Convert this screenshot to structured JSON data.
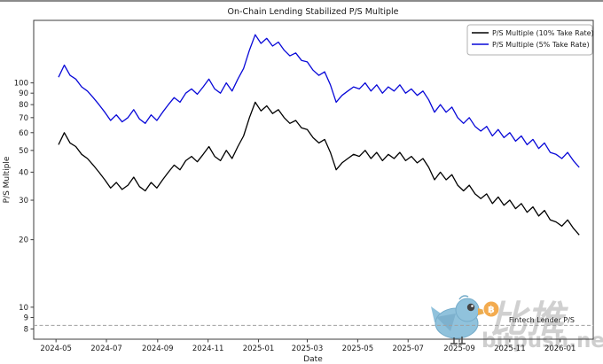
{
  "watermark": {
    "brand_cn": "比推",
    "brand_en": "bitpush.news",
    "bird_color": "#85bcd9",
    "bird_dark": "#66a3c4",
    "coin_color": "#f2a33c",
    "coin_symbol": "฿"
  },
  "chart_data": {
    "type": "line",
    "title": "On-Chain Lending Stabilized P/S Multiple",
    "xlabel": "Date",
    "ylabel": "P/S Multiple",
    "y_scale": "log",
    "ylim": [
      7.2,
      190
    ],
    "x_range": [
      "2024-04-04",
      "2026-02-10"
    ],
    "x_tick_labels": [
      "2024-05",
      "2024-07",
      "2024-09",
      "2024-11",
      "2025-01",
      "2025-03",
      "2025-05",
      "2025-07",
      "2025-09",
      "2025-11",
      "2026-01"
    ],
    "y_ticks": [
      8,
      9,
      10,
      20,
      30,
      40,
      50,
      60,
      70,
      80,
      90,
      100
    ],
    "grid": false,
    "legend_position": "upper right",
    "annotation_line": {
      "label": "Fintech Lender P/S",
      "value": 8.3,
      "style": "dashed",
      "color": "#a0a0a0"
    },
    "series": [
      {
        "name": "P/S Multiple (10% Take Rate)",
        "color": "#000000",
        "start_date": "2024-05-04",
        "step_days": 7,
        "values": [
          53,
          60,
          54,
          52,
          48,
          46,
          43,
          40,
          37,
          34,
          36,
          33.5,
          35,
          38,
          34.5,
          33,
          36,
          34,
          37,
          40,
          43,
          41,
          45,
          47,
          44.5,
          48,
          52,
          47,
          45,
          50,
          46,
          52,
          58,
          70,
          82,
          75,
          79,
          73,
          76,
          70,
          66,
          68,
          63,
          62,
          57,
          54,
          56,
          49,
          41,
          44,
          46,
          48,
          47,
          50,
          46,
          49,
          45,
          48,
          46,
          49,
          45,
          47,
          44,
          46,
          42,
          37,
          40,
          37,
          39,
          35,
          33,
          35,
          32,
          30.5,
          32,
          29,
          31,
          28.5,
          30,
          27.5,
          29,
          26.5,
          28,
          25.5,
          27,
          24.5,
          24,
          23,
          24.5,
          22.5,
          21
        ]
      },
      {
        "name": "P/S Multiple (5% Take Rate)",
        "color": "#0808d8",
        "start_date": "2024-05-04",
        "step_days": 7,
        "values": [
          106,
          120,
          108,
          104,
          96,
          92,
          86,
          80,
          74,
          68,
          72,
          67,
          70,
          76,
          69,
          66,
          72,
          68,
          74,
          80,
          86,
          82,
          90,
          94,
          89,
          96,
          104,
          94,
          90,
          100,
          92,
          104,
          116,
          140,
          164,
          150,
          158,
          146,
          152,
          140,
          132,
          136,
          126,
          124,
          114,
          108,
          112,
          98,
          82,
          88,
          92,
          96,
          94,
          100,
          92,
          98,
          90,
          96,
          92,
          98,
          90,
          94,
          88,
          92,
          84,
          74,
          80,
          74,
          78,
          70,
          66,
          70,
          64,
          61,
          64,
          58,
          62,
          57,
          60,
          55,
          58,
          53,
          56,
          51,
          54,
          49,
          48,
          46,
          49,
          45,
          42
        ]
      }
    ]
  }
}
